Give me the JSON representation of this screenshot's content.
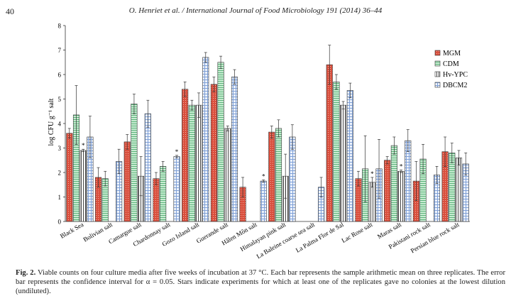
{
  "header": {
    "page_number": "40",
    "running_head": "O. Henriet et al. / International Journal of Food Microbiology 191 (2014) 36–44"
  },
  "caption": {
    "label": "Fig. 2.",
    "text": "Viable counts on four culture media after five weeks of incubation at 37 °C. Each bar represents the sample arithmetic mean on three replicates. The error bar represents the confidence interval for α = 0.05. Stars indicate experiments for which at least one of the replicates gave no colonies at the lowest dilution (undiluted)."
  },
  "chart_data": {
    "type": "bar",
    "ylabel": "log CFU g⁻¹ salt",
    "xlabel": "",
    "ylim": [
      0,
      8
    ],
    "yticks": [
      "0",
      "1",
      "2",
      "3",
      "4",
      "5",
      "6",
      "7",
      "8"
    ],
    "legend_position": "top-right",
    "categories": [
      "Black Sea",
      "Bolivian salt",
      "Camargue salt",
      "Chardonnay salt",
      "Gozo Island salt",
      "Guerande salt",
      "Hâlen Môn salt",
      "Himalayan pink salt",
      "La Baleine coarse sea salt",
      "La Palma Flor de Sal",
      "Lac Rose salt",
      "Maras salt",
      "Pakistani rock salt",
      "Persian blue rock salt"
    ],
    "series": [
      {
        "name": "MGM",
        "color": "#d9534f",
        "values": [
          3.6,
          1.8,
          3.25,
          1.75,
          5.4,
          5.6,
          1.4,
          3.65,
          null,
          6.4,
          1.75,
          2.5,
          1.65,
          2.85
        ],
        "errors": [
          0.2,
          0.4,
          0.3,
          0.25,
          0.3,
          0.3,
          0.4,
          0.25,
          null,
          0.8,
          0.3,
          0.15,
          0.8,
          0.6
        ]
      },
      {
        "name": "CDM",
        "color": "#b7e2c0",
        "values": [
          4.35,
          1.75,
          4.8,
          2.25,
          4.75,
          6.5,
          null,
          3.8,
          null,
          5.7,
          2.15,
          3.1,
          2.55,
          2.8
        ],
        "errors": [
          1.2,
          0.3,
          0.4,
          0.2,
          0.2,
          0.25,
          null,
          0.35,
          null,
          0.3,
          1.35,
          0.35,
          0.6,
          0.4
        ]
      },
      {
        "name": "Hv-YPC",
        "color": "#333333",
        "values": [
          2.9,
          null,
          1.85,
          null,
          4.75,
          3.8,
          null,
          1.85,
          null,
          4.75,
          1.6,
          2.05,
          null,
          2.6
        ],
        "errors": [
          0.05,
          null,
          0.8,
          null,
          0.5,
          0.1,
          null,
          0.9,
          null,
          0.15,
          0.2,
          0.05,
          null,
          0.3
        ],
        "stars": [
          true,
          false,
          false,
          false,
          false,
          false,
          false,
          false,
          false,
          false,
          true,
          true,
          false,
          false
        ]
      },
      {
        "name": "DBCM2",
        "color": "#a9c1e4",
        "values": [
          3.45,
          2.45,
          4.4,
          2.65,
          6.7,
          5.9,
          1.65,
          3.45,
          1.4,
          5.35,
          2.15,
          3.3,
          1.9,
          2.35
        ],
        "errors": [
          0.85,
          0.5,
          0.55,
          0.05,
          0.2,
          0.3,
          0.05,
          0.5,
          0.4,
          0.3,
          1.2,
          0.45,
          0.35,
          0.45
        ],
        "stars": [
          false,
          false,
          false,
          true,
          false,
          false,
          true,
          false,
          false,
          false,
          false,
          false,
          false,
          false
        ]
      }
    ]
  }
}
